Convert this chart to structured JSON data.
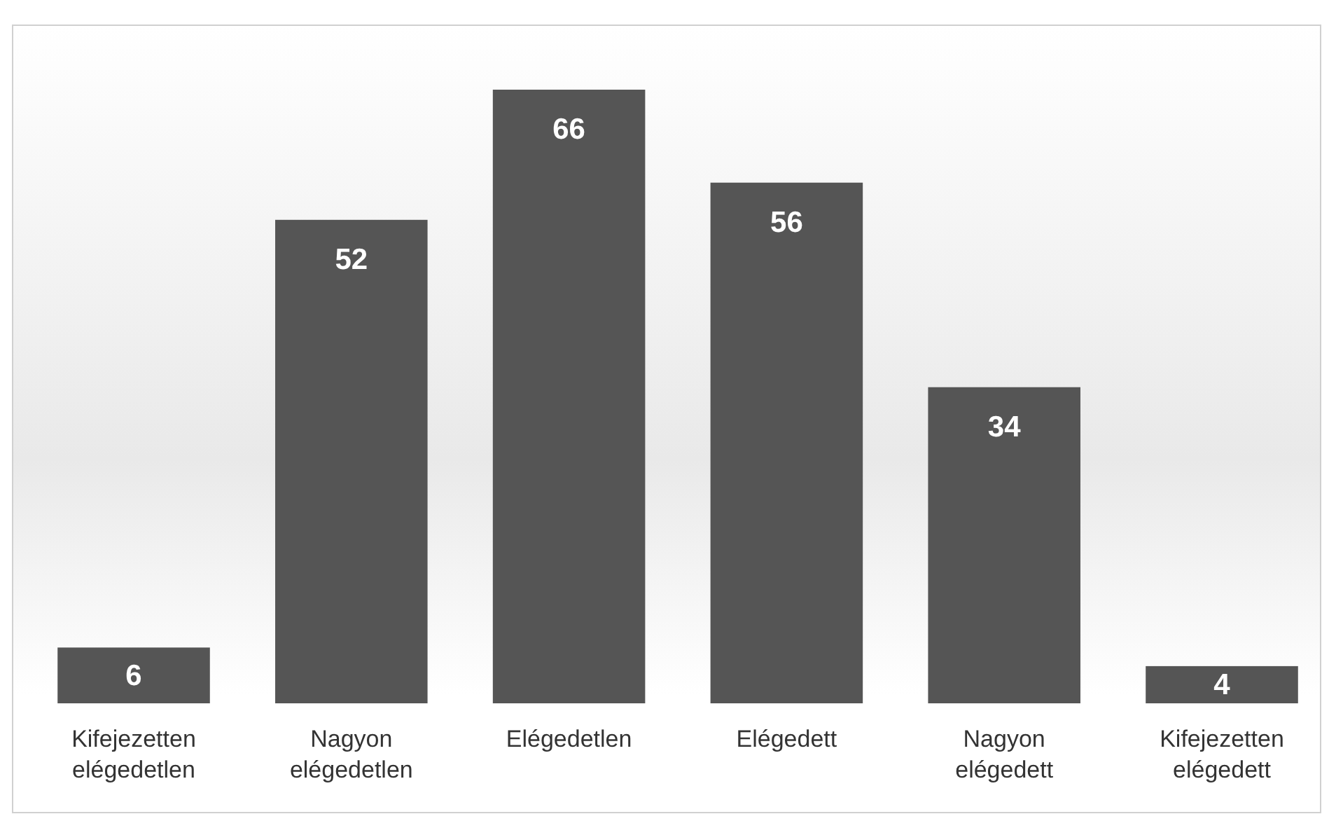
{
  "chart_data": {
    "type": "bar",
    "categories": [
      "Kifejezetten elégedetlen",
      "Nagyon elégedetlen",
      "Elégedetlen",
      "Elégedett",
      "Nagyon elégedett",
      "Kifejezetten elégedett"
    ],
    "values": [
      6,
      52,
      66,
      56,
      34,
      4
    ],
    "color": "#555555",
    "data_labels": true
  }
}
